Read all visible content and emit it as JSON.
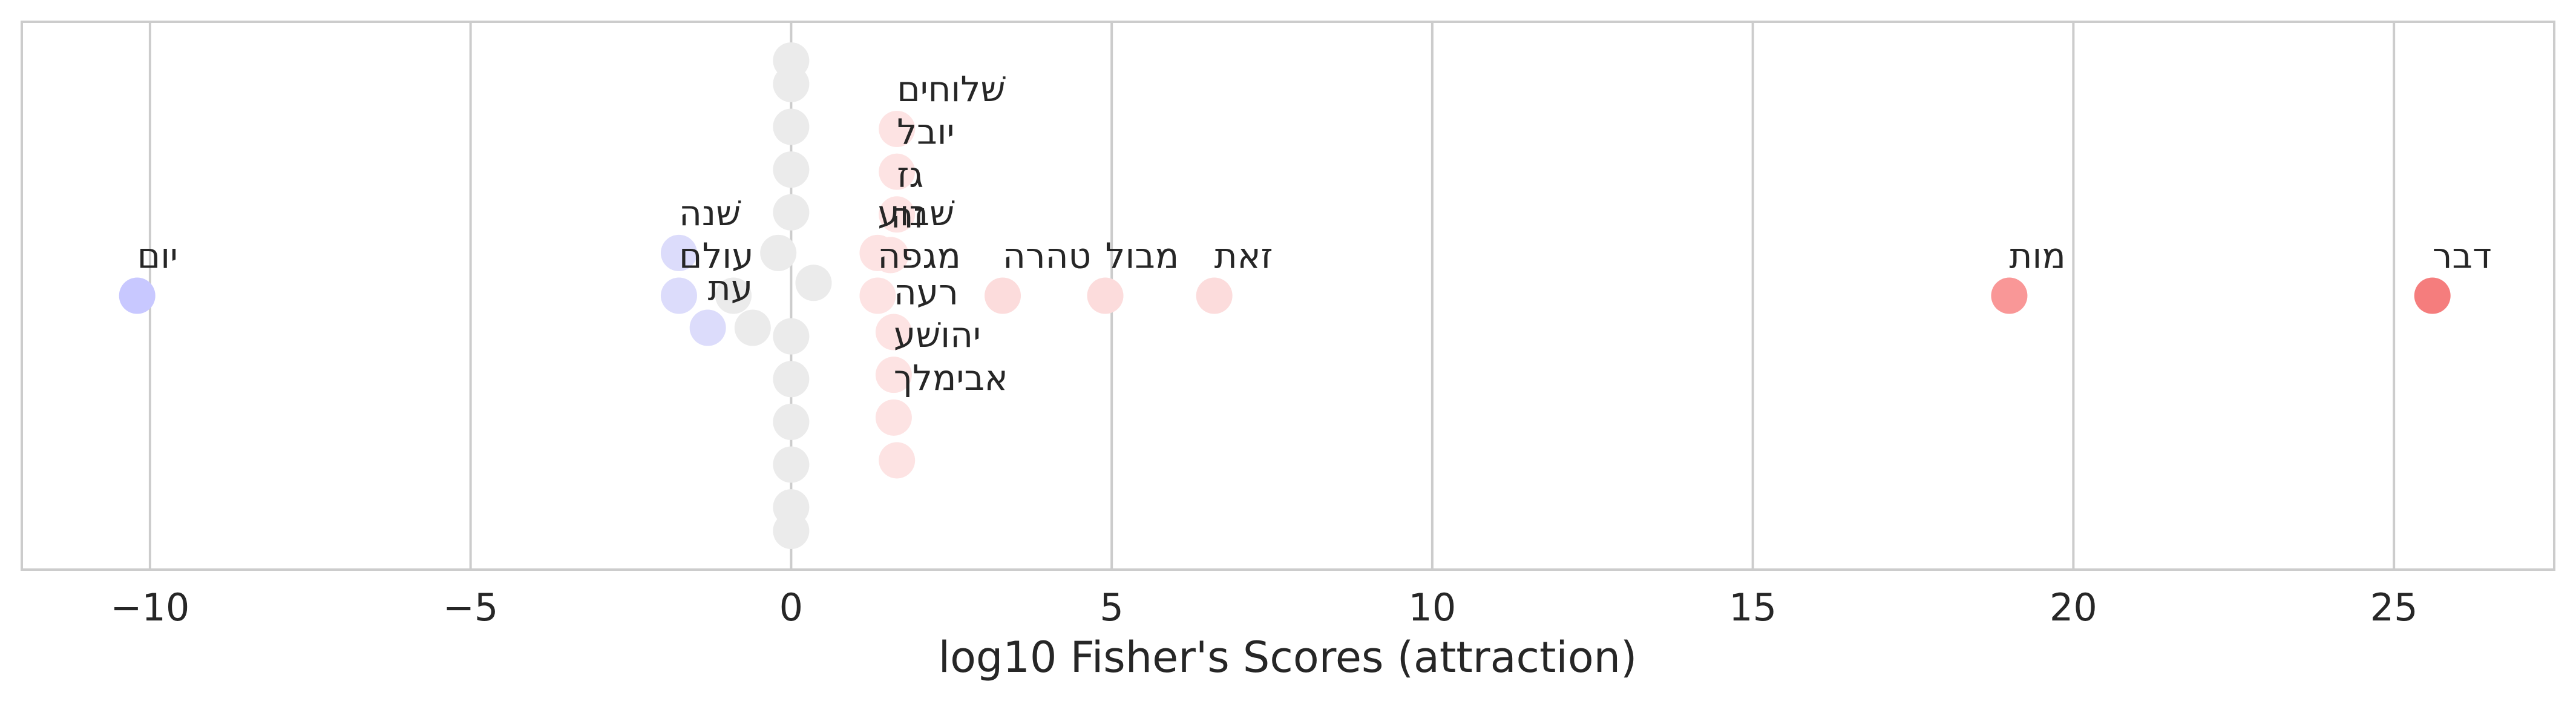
{
  "chart_data": {
    "type": "scatter",
    "title": "",
    "xlabel": "log10 Fisher's Scores (attraction)",
    "ylabel": "",
    "xlim": [
      -12.0,
      27.5
    ],
    "ylim": [
      -11,
      11
    ],
    "grid": "vertical",
    "legend": "none",
    "xticks": [
      -10,
      -5,
      0,
      5,
      10,
      15,
      20,
      25
    ],
    "xtick_labels": [
      "−10",
      "−5",
      "0",
      "5",
      "10",
      "15",
      "20",
      "25"
    ],
    "colors": {
      "neutral": "#ebebeb",
      "frame": "#cccccc",
      "grid": "#cccccc",
      "negative_strong": "#c8c8ff",
      "negative_light": "#dcdcfb",
      "positive_strongest": "#f57d7d",
      "positive_strong": "#f99797",
      "positive_light": "#fcdcdc",
      "positive_lightest": "#fde3e3"
    },
    "points": [
      {
        "x": 25.6,
        "y": 0,
        "label": "דבר",
        "color": "#f57d7d"
      },
      {
        "x": 19.0,
        "y": 0,
        "label": "מות",
        "color": "#f99797"
      },
      {
        "x": 6.6,
        "y": 0,
        "label": "זאת",
        "color": "#fcdcdc"
      },
      {
        "x": 4.9,
        "y": 0,
        "label": "מבול",
        "color": "#fcdcdc"
      },
      {
        "x": 3.3,
        "y": 0,
        "label": "טהרה",
        "color": "#fcdcdc"
      },
      {
        "x": 1.65,
        "y": 7.8,
        "label": "שׁלוחים",
        "color": "#fde3e3"
      },
      {
        "x": 1.65,
        "y": 5.8,
        "label": "יובל",
        "color": "#fde3e3"
      },
      {
        "x": 1.65,
        "y": 3.8,
        "label": "גז",
        "color": "#fde3e3"
      },
      {
        "x": 1.55,
        "y": 1.9,
        "label": "זה",
        "color": "#fde3e3"
      },
      {
        "x": 1.35,
        "y": 2.0,
        "label": "שׁבוע",
        "color": "#fde3e3"
      },
      {
        "x": 1.35,
        "y": 0,
        "label": "מגפה",
        "color": "#fde3e3"
      },
      {
        "x": 1.6,
        "y": -1.7,
        "label": "רעה",
        "color": "#fde3e3"
      },
      {
        "x": 1.6,
        "y": -3.7,
        "label": "יהושׁע",
        "color": "#fde3e3"
      },
      {
        "x": 1.6,
        "y": -5.7,
        "label": "אבימלך",
        "color": "#fde3e3"
      },
      {
        "x": 1.65,
        "y": -7.7,
        "label": "",
        "color": "#fde3e3"
      },
      {
        "x": -10.2,
        "y": 0,
        "label": "יום",
        "color": "#c8c8ff"
      },
      {
        "x": -1.75,
        "y": 2.0,
        "label": "שׁנה",
        "color": "#dcdcfb"
      },
      {
        "x": -1.75,
        "y": 0,
        "label": "עולם",
        "color": "#dcdcfb"
      },
      {
        "x": -1.3,
        "y": -1.5,
        "label": "עת",
        "color": "#dcdcfb"
      },
      {
        "x": 0,
        "y": 11.0,
        "label": "",
        "color": "#ebebeb"
      },
      {
        "x": 0,
        "y": 9.9,
        "label": "",
        "color": "#ebebeb"
      },
      {
        "x": 0,
        "y": 7.9,
        "label": "",
        "color": "#ebebeb"
      },
      {
        "x": 0,
        "y": 5.9,
        "label": "",
        "color": "#ebebeb"
      },
      {
        "x": 0,
        "y": 3.9,
        "label": "",
        "color": "#ebebeb"
      },
      {
        "x": 0,
        "y": -1.9,
        "label": "",
        "color": "#ebebeb"
      },
      {
        "x": 0,
        "y": -3.9,
        "label": "",
        "color": "#ebebeb"
      },
      {
        "x": 0,
        "y": -5.9,
        "label": "",
        "color": "#ebebeb"
      },
      {
        "x": 0,
        "y": -7.9,
        "label": "",
        "color": "#ebebeb"
      },
      {
        "x": 0,
        "y": -9.9,
        "label": "",
        "color": "#ebebeb"
      },
      {
        "x": 0,
        "y": -11.0,
        "label": "",
        "color": "#ebebeb"
      },
      {
        "x": -0.2,
        "y": 2.0,
        "label": "",
        "color": "#ebebeb"
      },
      {
        "x": 0.35,
        "y": 0.6,
        "label": "",
        "color": "#ebebeb"
      },
      {
        "x": -0.9,
        "y": 0,
        "label": "",
        "color": "#ebebeb"
      },
      {
        "x": -0.6,
        "y": -1.5,
        "label": "",
        "color": "#ebebeb"
      }
    ]
  }
}
